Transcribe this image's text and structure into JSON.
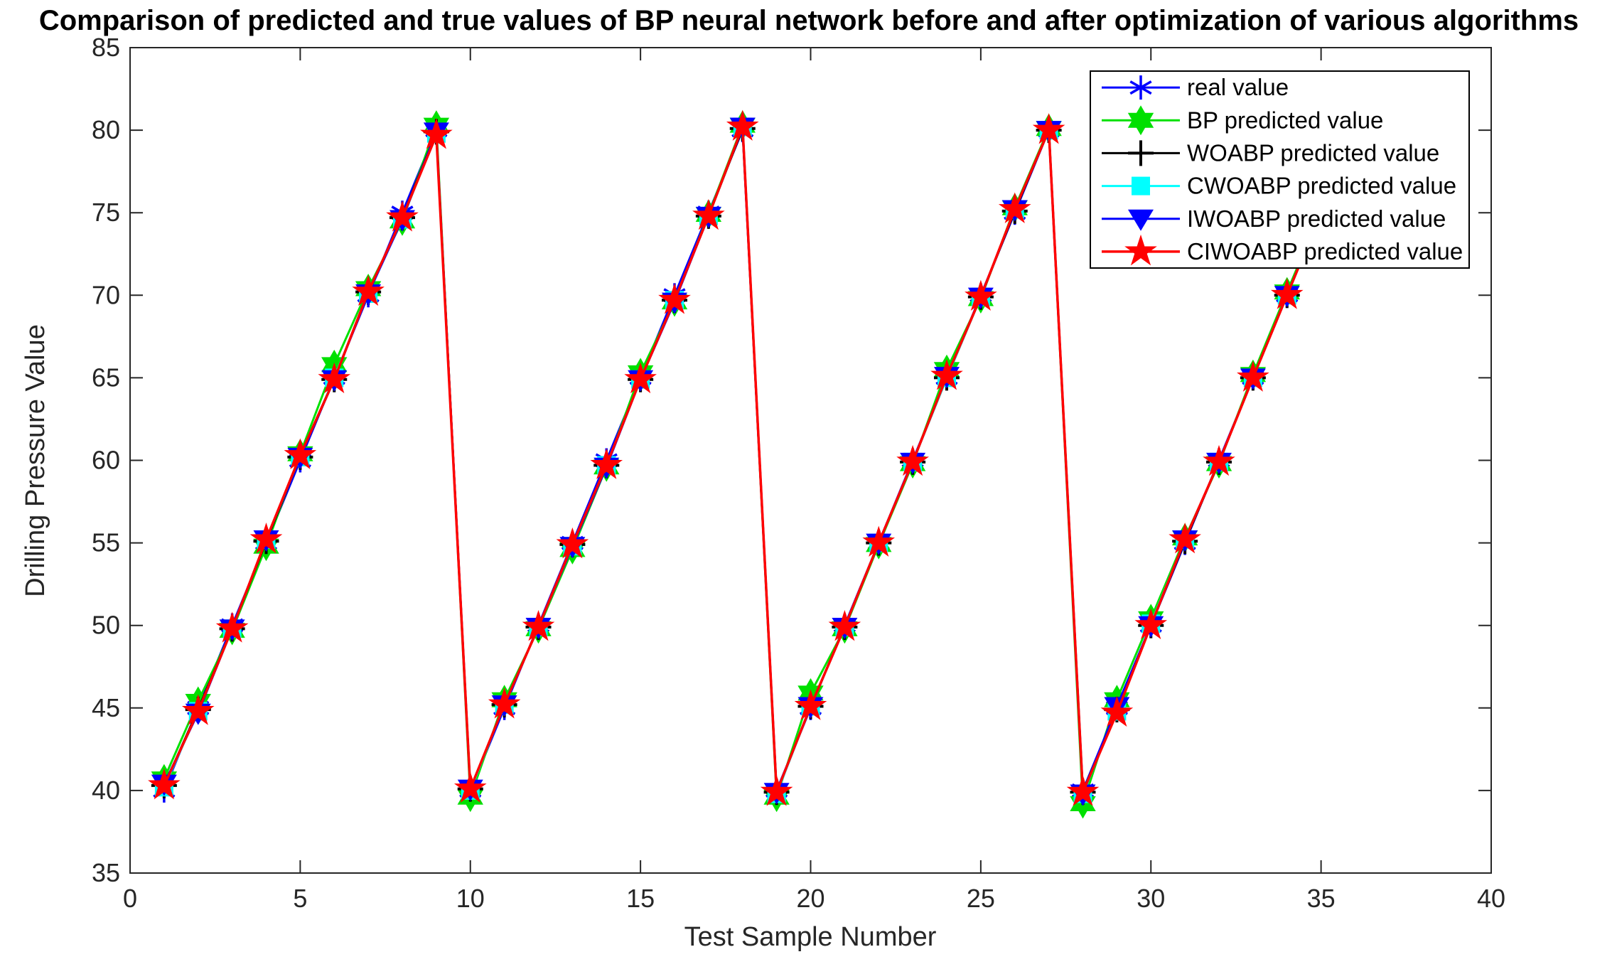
{
  "chart_data": {
    "type": "line",
    "title": "Comparison of predicted and true values of BP neural network before and after optimization of various algorithms",
    "xlabel": "Test Sample Number",
    "ylabel": "Drilling Pressure Value",
    "xlim": [
      0,
      40
    ],
    "ylim": [
      35,
      85
    ],
    "xticks": [
      0,
      5,
      10,
      15,
      20,
      25,
      30,
      35,
      40
    ],
    "yticks": [
      35,
      40,
      45,
      50,
      55,
      60,
      65,
      70,
      75,
      80,
      85
    ],
    "grid": false,
    "axis_color": "#262626",
    "background_color": "#ffffff",
    "legend_position": "top-right-inside",
    "x": [
      1,
      2,
      3,
      4,
      5,
      6,
      7,
      8,
      9,
      10,
      11,
      12,
      13,
      14,
      15,
      16,
      17,
      18,
      19,
      20,
      21,
      22,
      23,
      24,
      25,
      26,
      27,
      28,
      29,
      30,
      31,
      32,
      33,
      34,
      35,
      36
    ],
    "series": [
      {
        "name": "real value",
        "color": "#0000ff",
        "marker": "asterisk",
        "values": [
          40,
          45,
          50,
          55,
          60,
          65,
          70,
          75,
          80,
          40,
          45,
          50,
          55,
          60,
          65,
          70,
          75,
          80,
          40,
          45,
          50,
          55,
          60,
          65,
          70,
          75,
          80,
          40,
          45,
          50,
          55,
          60,
          65,
          70,
          75,
          80
        ]
      },
      {
        "name": "BP predicted value",
        "color": "#00e000",
        "marker": "hexagram",
        "values": [
          40.7,
          45.4,
          49.7,
          54.8,
          60.4,
          65.8,
          70.4,
          74.5,
          80.3,
          39.6,
          45.5,
          49.8,
          54.6,
          59.6,
          65.3,
          69.6,
          74.9,
          80.3,
          39.6,
          45.9,
          49.8,
          54.9,
          59.8,
          65.5,
          69.8,
          75.3,
          80.1,
          39.2,
          45.5,
          50.4,
          55.3,
          59.8,
          65.2,
          70.2,
          75.1,
          80.0
        ]
      },
      {
        "name": "WOABP predicted value",
        "color": "#000000",
        "marker": "plus",
        "values": [
          40.3,
          44.9,
          49.8,
          55.1,
          60.2,
          64.9,
          70.2,
          74.7,
          79.9,
          40.1,
          45.2,
          49.9,
          54.9,
          59.7,
          64.9,
          69.7,
          74.8,
          80.1,
          39.9,
          45.1,
          49.9,
          55.0,
          59.9,
          65.0,
          69.9,
          75.1,
          80.0,
          39.9,
          44.9,
          50.0,
          55.1,
          59.9,
          65.0,
          70.0,
          75.0,
          80.0
        ]
      },
      {
        "name": "CWOABP predicted value",
        "color": "#00ffff",
        "marker": "square",
        "values": [
          40.2,
          44.8,
          49.8,
          55.2,
          60.2,
          65.0,
          70.1,
          74.6,
          79.8,
          40.0,
          45.2,
          49.9,
          54.8,
          59.7,
          64.9,
          69.7,
          74.8,
          80.2,
          39.8,
          45.1,
          49.9,
          55.0,
          59.9,
          65.0,
          69.9,
          75.2,
          80.0,
          39.8,
          44.8,
          50.1,
          55.2,
          59.9,
          65.0,
          70.0,
          75.0,
          80.0
        ]
      },
      {
        "name": "IWOABP predicted value",
        "color": "#0000ff",
        "marker": "triangle-down",
        "values": [
          40.4,
          44.7,
          49.8,
          55.2,
          60.2,
          64.9,
          70.1,
          74.6,
          79.9,
          40.1,
          45.2,
          49.9,
          54.8,
          59.6,
          64.9,
          69.6,
          74.8,
          80.2,
          39.9,
          45.1,
          49.9,
          55.0,
          59.9,
          65.1,
          69.9,
          75.2,
          80.0,
          39.8,
          45.1,
          50.0,
          55.2,
          59.9,
          65.0,
          70.0,
          75.0,
          80.0
        ]
      },
      {
        "name": "CIWOABP predicted value",
        "color": "#ff0000",
        "marker": "pentagram",
        "values": [
          40.3,
          44.8,
          49.8,
          55.2,
          60.3,
          64.9,
          70.2,
          74.7,
          79.7,
          40.1,
          45.2,
          49.9,
          54.9,
          59.7,
          64.9,
          69.7,
          74.8,
          80.2,
          39.9,
          45.1,
          49.9,
          55.0,
          59.9,
          65.1,
          69.9,
          75.2,
          80.0,
          39.9,
          44.7,
          50.0,
          55.2,
          59.9,
          65.0,
          70.0,
          75.0,
          80.0
        ]
      }
    ]
  }
}
